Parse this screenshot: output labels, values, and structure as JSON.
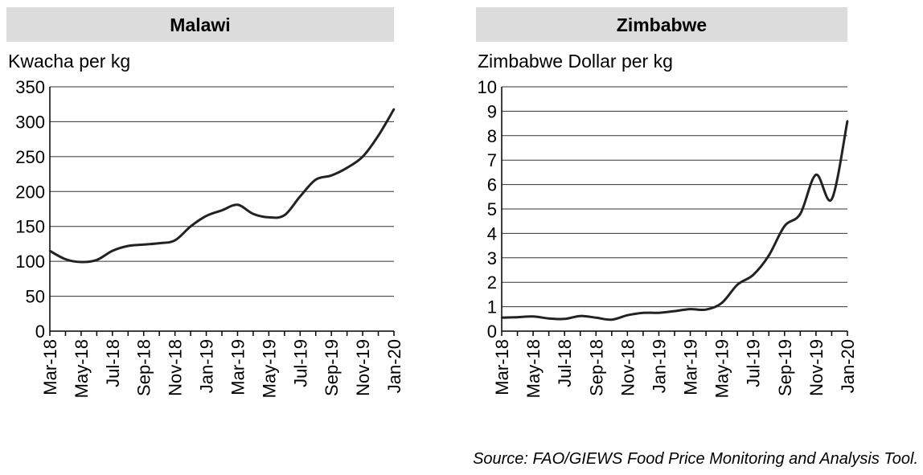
{
  "source": "Source: FAO/GIEWS Food Price Monitoring and Analysis Tool.",
  "chart_data": [
    {
      "type": "line",
      "title": "Malawi",
      "ylabel": "Kwacha per kg",
      "xlabel": "",
      "ylim": [
        0,
        350
      ],
      "yticks": [
        0,
        50,
        100,
        150,
        200,
        250,
        300,
        350
      ],
      "grid": "horizontal",
      "x": [
        "Mar-18",
        "Apr-18",
        "May-18",
        "Jun-18",
        "Jul-18",
        "Aug-18",
        "Sep-18",
        "Oct-18",
        "Nov-18",
        "Dec-18",
        "Jan-19",
        "Feb-19",
        "Mar-19",
        "Apr-19",
        "May-19",
        "Jun-19",
        "Jul-19",
        "Aug-19",
        "Sep-19",
        "Oct-19",
        "Nov-19",
        "Dec-19",
        "Jan-20"
      ],
      "xtick_labels": [
        "Mar-18",
        "May-18",
        "Jul-18",
        "Sep-18",
        "Nov-18",
        "Jan-19",
        "Mar-19",
        "May-19",
        "Jul-19",
        "Sep-19",
        "Nov-19",
        "Jan-20"
      ],
      "series": [
        {
          "values": [
            115,
            103,
            99,
            102,
            115,
            122,
            124,
            126,
            130,
            150,
            165,
            173,
            181,
            168,
            163,
            166,
            193,
            217,
            223,
            234,
            250,
            280,
            318
          ]
        }
      ],
      "line_color": "#222222",
      "header_color": "#dcdcdc"
    },
    {
      "type": "line",
      "title": "Zimbabwe",
      "ylabel": "Zimbabwe Dollar per kg",
      "xlabel": "",
      "ylim": [
        0,
        10
      ],
      "yticks": [
        0,
        1,
        2,
        3,
        4,
        5,
        6,
        7,
        8,
        9,
        10
      ],
      "grid": "horizontal",
      "x": [
        "Mar-18",
        "Apr-18",
        "May-18",
        "Jun-18",
        "Jul-18",
        "Aug-18",
        "Sep-18",
        "Oct-18",
        "Nov-18",
        "Dec-18",
        "Jan-19",
        "Feb-19",
        "Mar-19",
        "Apr-19",
        "May-19",
        "Jun-19",
        "Jul-19",
        "Aug-19",
        "Sep-19",
        "Oct-19",
        "Nov-19",
        "Dec-19",
        "Jan-20"
      ],
      "xtick_labels": [
        "Mar-18",
        "May-18",
        "Jul-18",
        "Sep-18",
        "Nov-18",
        "Jan-19",
        "Mar-19",
        "May-19",
        "Jul-19",
        "Sep-19",
        "Nov-19",
        "Jan-20"
      ],
      "series": [
        {
          "values": [
            0.55,
            0.57,
            0.6,
            0.52,
            0.5,
            0.62,
            0.55,
            0.47,
            0.65,
            0.75,
            0.75,
            0.82,
            0.9,
            0.88,
            1.15,
            1.9,
            2.3,
            3.1,
            4.3,
            4.8,
            6.4,
            5.4,
            8.6
          ]
        }
      ],
      "line_color": "#222222",
      "header_color": "#dcdcdc"
    }
  ]
}
